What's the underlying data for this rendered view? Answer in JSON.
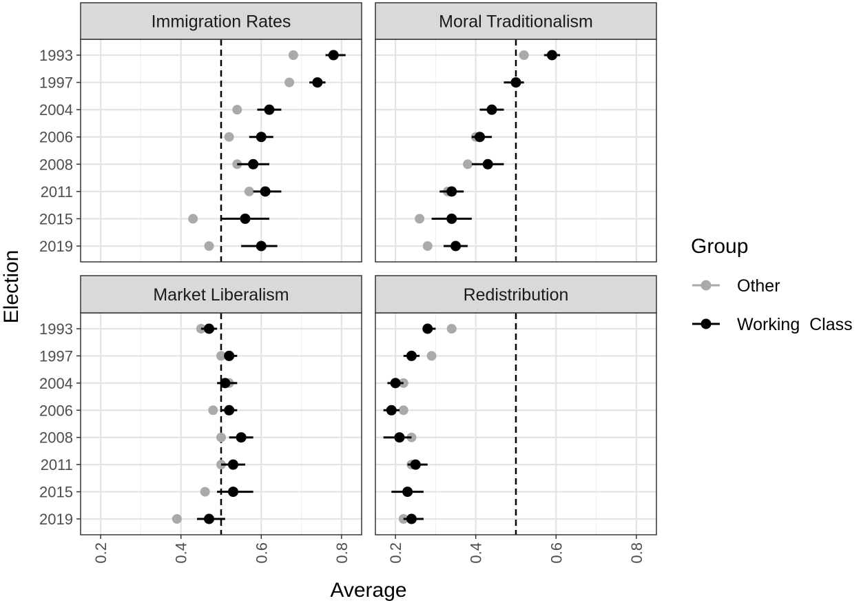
{
  "chart_data": {
    "type": "scatter",
    "subtype": "faceted dot plot with error bars",
    "xlabel": "Average",
    "ylabel": "Election",
    "xlim": [
      0.15,
      0.85
    ],
    "x_ticks": [
      "0.2",
      "0.4",
      "0.6",
      "0.8"
    ],
    "reference_line": 0.5,
    "categories": [
      "1993",
      "1997",
      "2004",
      "2006",
      "2008",
      "2011",
      "2015",
      "2019"
    ],
    "legend": {
      "title": "Group",
      "placement": "right",
      "entries": [
        {
          "label": "Other",
          "color": "#aaaaaa"
        },
        {
          "label": "Working  Class",
          "color": "#000000"
        }
      ]
    },
    "grid": true,
    "panels": [
      {
        "title": "Immigration Rates",
        "series": [
          {
            "name": "Other",
            "values": [
              0.68,
              0.67,
              0.54,
              0.52,
              0.54,
              0.57,
              0.43,
              0.47
            ]
          },
          {
            "name": "Working  Class",
            "values": [
              0.78,
              0.74,
              0.62,
              0.6,
              0.58,
              0.61,
              0.56,
              0.6
            ],
            "ci_low": [
              0.76,
              0.72,
              0.59,
              0.57,
              0.54,
              0.58,
              0.5,
              0.55
            ],
            "ci_high": [
              0.81,
              0.76,
              0.65,
              0.63,
              0.62,
              0.65,
              0.62,
              0.64
            ]
          }
        ]
      },
      {
        "title": "Moral Traditionalism",
        "series": [
          {
            "name": "Other",
            "values": [
              0.52,
              0.5,
              0.44,
              0.4,
              0.38,
              0.33,
              0.26,
              0.28
            ]
          },
          {
            "name": "Working  Class",
            "values": [
              0.59,
              0.5,
              0.44,
              0.41,
              0.43,
              0.34,
              0.34,
              0.35
            ],
            "ci_low": [
              0.57,
              0.47,
              0.41,
              0.39,
              0.39,
              0.31,
              0.29,
              0.32
            ],
            "ci_high": [
              0.61,
              0.52,
              0.47,
              0.44,
              0.47,
              0.37,
              0.39,
              0.38
            ]
          }
        ]
      },
      {
        "title": "Market Liberalism",
        "series": [
          {
            "name": "Other",
            "values": [
              0.45,
              0.5,
              0.52,
              0.48,
              0.5,
              0.5,
              0.46,
              0.39
            ]
          },
          {
            "name": "Working  Class",
            "values": [
              0.47,
              0.52,
              0.51,
              0.52,
              0.55,
              0.53,
              0.53,
              0.47
            ],
            "ci_low": [
              0.45,
              0.51,
              0.49,
              0.5,
              0.52,
              0.5,
              0.49,
              0.44
            ],
            "ci_high": [
              0.49,
              0.54,
              0.54,
              0.54,
              0.58,
              0.56,
              0.58,
              0.51
            ]
          }
        ]
      },
      {
        "title": "Redistribution",
        "series": [
          {
            "name": "Other",
            "values": [
              0.34,
              0.29,
              0.22,
              0.22,
              0.24,
              0.24,
              0.23,
              0.22
            ]
          },
          {
            "name": "Working  Class",
            "values": [
              0.28,
              0.24,
              0.2,
              0.19,
              0.21,
              0.25,
              0.23,
              0.24
            ],
            "ci_low": [
              0.27,
              0.22,
              0.18,
              0.17,
              0.17,
              0.23,
              0.19,
              0.22
            ],
            "ci_high": [
              0.3,
              0.26,
              0.22,
              0.21,
              0.24,
              0.28,
              0.27,
              0.27
            ]
          }
        ]
      }
    ]
  }
}
